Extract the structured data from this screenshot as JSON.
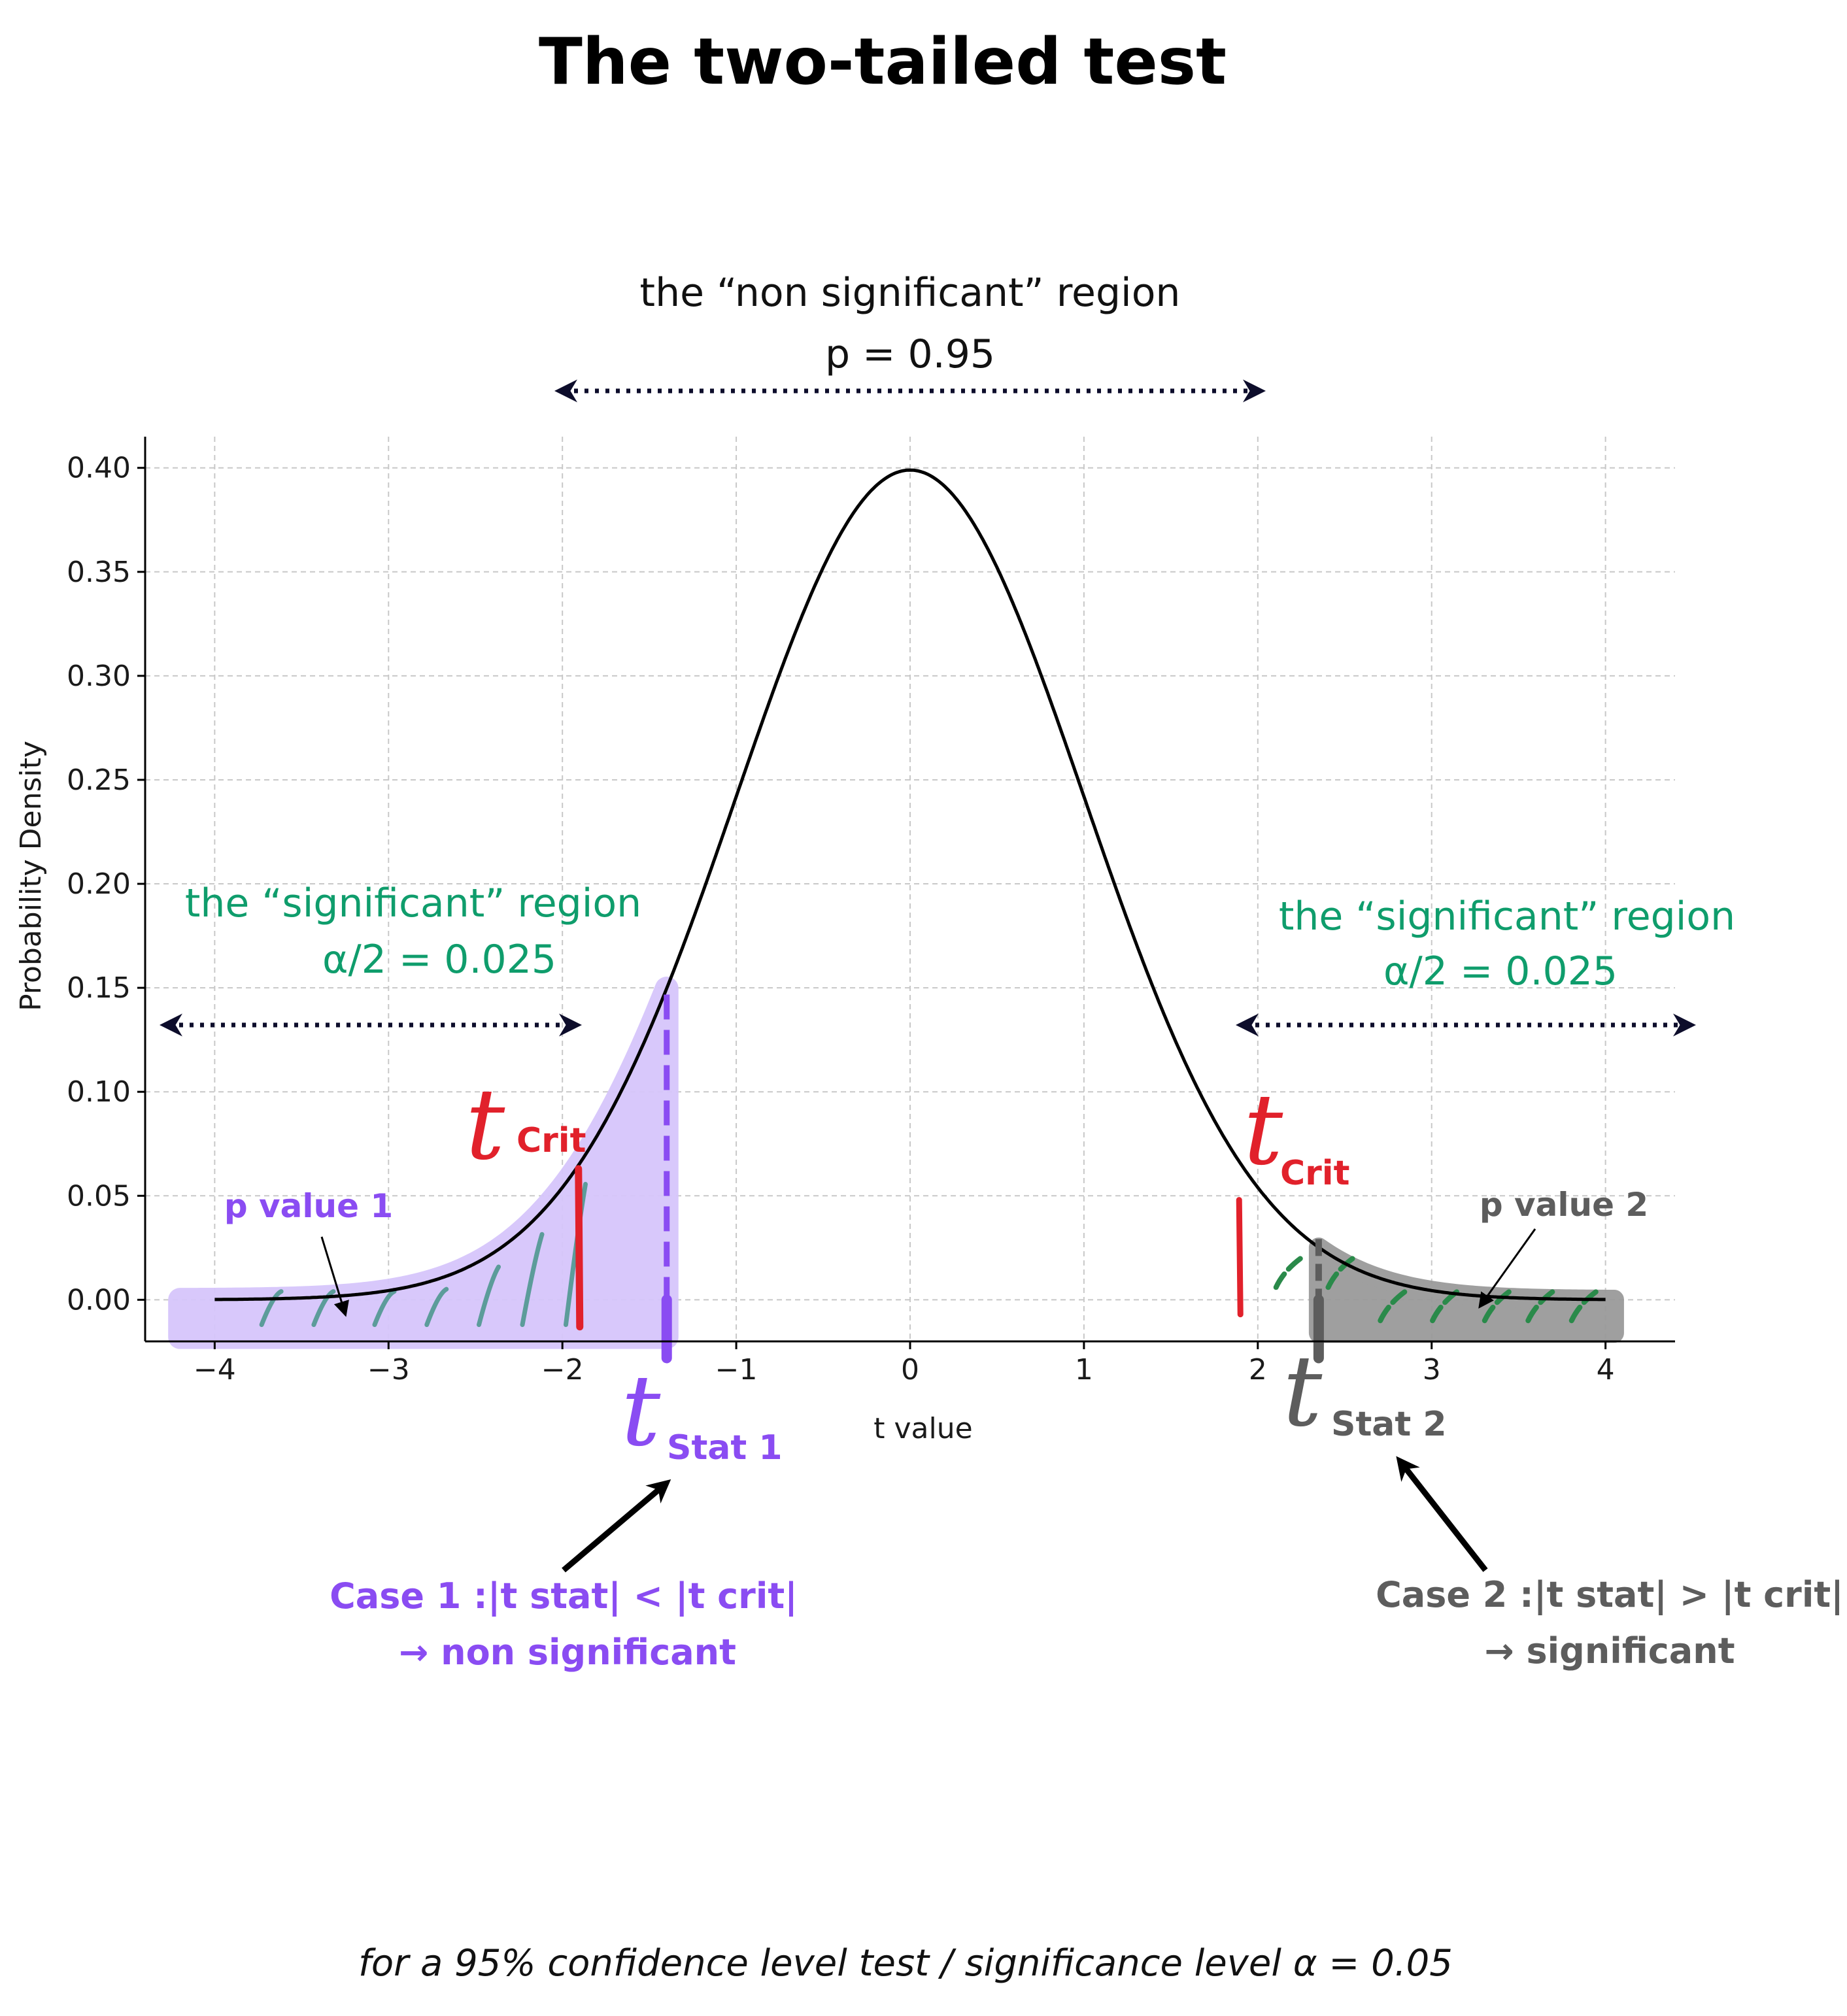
{
  "title": "The two-tailed test",
  "colors": {
    "curve": "#000000",
    "grid": "#c8c8c8",
    "purple": "#8a4cf2",
    "purple_fill": "#d6c6fb",
    "grey": "#5d5d5d",
    "grey_fill": "#9a9a9a",
    "red": "#e1212b",
    "green": "#0f9d6c",
    "hatch_teal": "#5c9c9a",
    "hatch_green": "#2a8a4a",
    "arrow_navy": "#0d0d2b"
  },
  "chart_data": {
    "type": "line",
    "distribution": "t (approximately standard normal)",
    "xlabel": "t value",
    "ylabel": "Probability Density",
    "xlim": [
      -4.4,
      4.4
    ],
    "ylim": [
      -0.02,
      0.415
    ],
    "xticks": [
      -4,
      -3,
      -2,
      -1,
      0,
      1,
      2,
      3,
      4
    ],
    "xtick_labels": [
      "−4",
      "−3",
      "−2",
      "−1",
      "0",
      "1",
      "2",
      "3",
      "4"
    ],
    "yticks": [
      0.0,
      0.05,
      0.1,
      0.15,
      0.2,
      0.25,
      0.3,
      0.35,
      0.4
    ],
    "ytick_labels": [
      "0.00",
      "0.05",
      "0.10",
      "0.15",
      "0.20",
      "0.25",
      "0.30",
      "0.35",
      "0.40"
    ],
    "grid": true,
    "curve_x_range": [
      -4,
      4
    ],
    "peak": 0.399,
    "t_crit": [
      -1.9,
      1.9
    ],
    "t_stat_1": -1.4,
    "t_stat_2": 2.35
  },
  "annotations": {
    "non_sig_line1": "the “non significant” region",
    "non_sig_line2": "p = 0.95",
    "sig_left_line1": "the “significant” region",
    "sig_left_line2": "α/2 = 0.025",
    "sig_right_line1": "the “significant” region",
    "sig_right_line2": "α/2 = 0.025",
    "t_letter": "t",
    "crit_sub": "Crit",
    "stat1_sub": "Stat 1",
    "stat2_sub": "Stat 2",
    "pvalue1": "p value 1",
    "pvalue2": "p value 2",
    "case1_line1": "Case 1 :|t stat| < |t crit|",
    "case1_line2": "→ non significant",
    "case2_line1": "Case 2 :|t stat| > |t crit|",
    "case2_line2": "→ significant",
    "footer": "for a 95% confidence level test / significance level α = 0.05"
  }
}
